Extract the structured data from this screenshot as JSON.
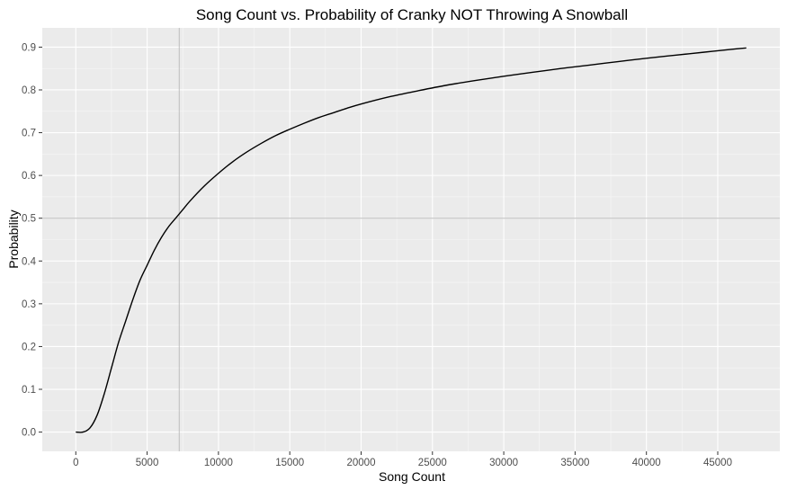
{
  "chart_data": {
    "type": "line",
    "title": "Song Count vs. Probability of Cranky NOT Throwing A Snowball",
    "xlabel": "Song Count",
    "ylabel": "Probability",
    "xlim": [
      -2350,
      49350
    ],
    "ylim": [
      -0.045,
      0.945
    ],
    "x_ticks": [
      0,
      5000,
      10000,
      15000,
      20000,
      25000,
      30000,
      35000,
      40000,
      45000
    ],
    "x_tick_labels": [
      "0",
      "5000",
      "10000",
      "15000",
      "20000",
      "25000",
      "30000",
      "35000",
      "40000",
      "45000"
    ],
    "y_ticks": [
      0.0,
      0.1,
      0.2,
      0.3,
      0.4,
      0.5,
      0.6,
      0.7,
      0.8,
      0.9
    ],
    "y_tick_labels": [
      "0.0",
      "0.1",
      "0.2",
      "0.3",
      "0.4",
      "0.5",
      "0.6",
      "0.7",
      "0.8",
      "0.9"
    ],
    "grid": true,
    "reference_lines": {
      "vertical_x": 7250,
      "horizontal_y": 0.5
    },
    "series": [
      {
        "x": [
          0,
          500,
          1000,
          1500,
          2000,
          2500,
          3000,
          3500,
          4000,
          4500,
          5000,
          5500,
          6000,
          6500,
          7000,
          7500,
          8000,
          9000,
          10000,
          11000,
          12000,
          13000,
          14000,
          15000,
          16000,
          17000,
          18000,
          19000,
          20000,
          22000,
          24000,
          26000,
          28000,
          30000,
          32000,
          34000,
          36000,
          38000,
          40000,
          42000,
          44000,
          46000,
          47000
        ],
        "y": [
          0.0,
          0.0,
          0.01,
          0.04,
          0.09,
          0.15,
          0.21,
          0.26,
          0.31,
          0.355,
          0.39,
          0.425,
          0.455,
          0.48,
          0.5,
          0.52,
          0.54,
          0.575,
          0.605,
          0.632,
          0.655,
          0.675,
          0.693,
          0.708,
          0.722,
          0.735,
          0.746,
          0.757,
          0.767,
          0.784,
          0.798,
          0.811,
          0.822,
          0.832,
          0.841,
          0.85,
          0.858,
          0.866,
          0.874,
          0.881,
          0.888,
          0.895,
          0.898
        ]
      }
    ],
    "colors": {
      "panel_background": "#ebebeb",
      "grid_major": "#ffffff",
      "reference_line": "#bebebe",
      "series_line": "#000000"
    }
  }
}
